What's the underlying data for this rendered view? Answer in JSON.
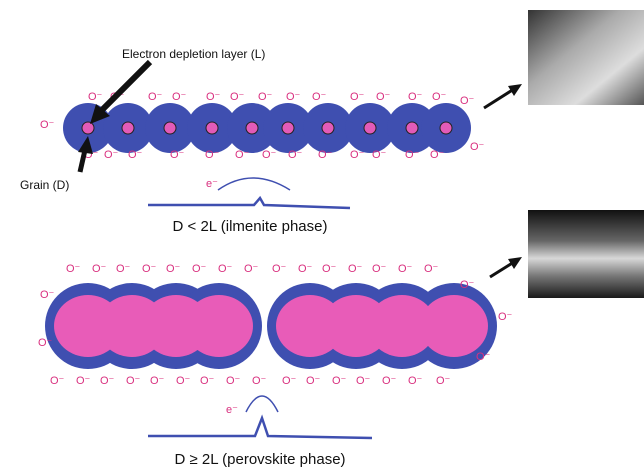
{
  "annotations": {
    "depletion_layer": "Electron depletion layer (L)",
    "grain": "Grain (D)",
    "electron": "e⁻",
    "ion": "O⁻"
  },
  "panels": [
    {
      "label": "D < 2L (ilmenite phase)"
    },
    {
      "label": "D ≥ 2L (perovskite phase)"
    }
  ]
}
